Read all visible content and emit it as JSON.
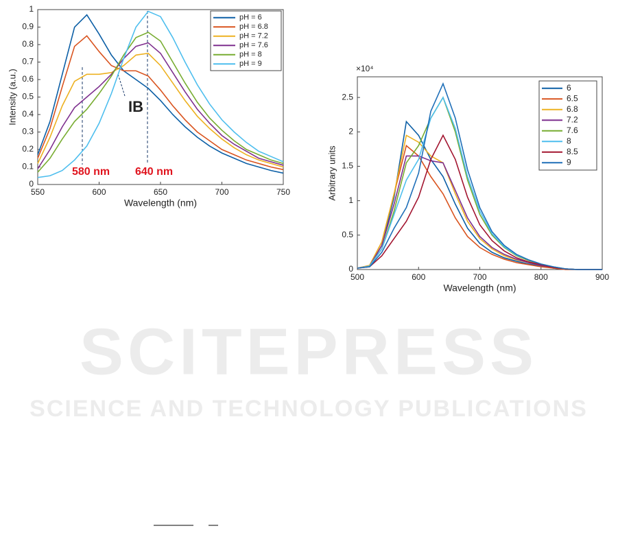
{
  "chart_data": [
    {
      "type": "line",
      "xlabel": "Wavelength (nm)",
      "ylabel": "Intensity (a.u.)",
      "x": [
        550,
        560,
        570,
        580,
        590,
        600,
        610,
        620,
        630,
        640,
        650,
        660,
        670,
        680,
        690,
        700,
        710,
        720,
        730,
        740,
        750
      ],
      "xlim": [
        550,
        750
      ],
      "xticks": [
        550,
        600,
        650,
        700,
        750
      ],
      "ylim": [
        0,
        1
      ],
      "yticks": [
        0,
        0.1,
        0.2,
        0.3,
        0.4,
        0.5,
        0.6,
        0.7,
        0.8,
        0.9,
        1
      ],
      "legend": "upper right",
      "annotations": [
        "IB",
        "580 nm",
        "640 nm"
      ],
      "series": [
        {
          "name": "pH = 6",
          "color": "#0c5fa6",
          "values": [
            0.17,
            0.36,
            0.63,
            0.9,
            0.97,
            0.86,
            0.74,
            0.65,
            0.6,
            0.55,
            0.48,
            0.4,
            0.33,
            0.27,
            0.22,
            0.18,
            0.15,
            0.12,
            0.1,
            0.08,
            0.065
          ]
        },
        {
          "name": "pH = 6.8",
          "color": "#d9531e",
          "values": [
            0.15,
            0.32,
            0.56,
            0.79,
            0.85,
            0.76,
            0.68,
            0.65,
            0.65,
            0.62,
            0.54,
            0.45,
            0.37,
            0.3,
            0.25,
            0.2,
            0.17,
            0.14,
            0.12,
            0.1,
            0.085
          ]
        },
        {
          "name": "pH = 7.2",
          "color": "#edb120",
          "values": [
            0.12,
            0.27,
            0.45,
            0.59,
            0.63,
            0.63,
            0.64,
            0.68,
            0.74,
            0.75,
            0.68,
            0.58,
            0.48,
            0.39,
            0.32,
            0.26,
            0.21,
            0.17,
            0.14,
            0.12,
            0.1
          ]
        },
        {
          "name": "pH = 7.6",
          "color": "#7e2f8e",
          "values": [
            0.09,
            0.2,
            0.33,
            0.44,
            0.5,
            0.56,
            0.63,
            0.72,
            0.79,
            0.81,
            0.75,
            0.64,
            0.53,
            0.43,
            0.35,
            0.28,
            0.23,
            0.19,
            0.15,
            0.13,
            0.11
          ]
        },
        {
          "name": "pH = 8",
          "color": "#77ac30",
          "values": [
            0.07,
            0.15,
            0.26,
            0.36,
            0.43,
            0.52,
            0.62,
            0.74,
            0.84,
            0.87,
            0.82,
            0.7,
            0.58,
            0.47,
            0.38,
            0.31,
            0.25,
            0.2,
            0.17,
            0.14,
            0.12
          ]
        },
        {
          "name": "pH = 9",
          "color": "#4dbeee",
          "values": [
            0.04,
            0.05,
            0.08,
            0.14,
            0.22,
            0.35,
            0.52,
            0.72,
            0.9,
            0.99,
            0.96,
            0.84,
            0.7,
            0.57,
            0.46,
            0.37,
            0.3,
            0.24,
            0.19,
            0.16,
            0.13
          ]
        }
      ]
    },
    {
      "type": "line",
      "xlabel": "Wavelength (nm)",
      "ylabel": "Arbitrary units",
      "y_scale_label": "×10⁴",
      "x": [
        500,
        520,
        540,
        560,
        580,
        600,
        620,
        640,
        660,
        680,
        700,
        720,
        740,
        760,
        780,
        800,
        820,
        840,
        860,
        880,
        900
      ],
      "xlim": [
        500,
        900
      ],
      "xticks": [
        500,
        600,
        700,
        800,
        900
      ],
      "ylim": [
        0,
        2.8
      ],
      "yticks": [
        0,
        0.5,
        1,
        1.5,
        2,
        2.5
      ],
      "legend": "upper right",
      "series": [
        {
          "name": "6",
          "color": "#0c5fa6",
          "values": [
            0.02,
            0.05,
            0.35,
            1.05,
            2.15,
            1.95,
            1.6,
            1.35,
            0.95,
            0.6,
            0.38,
            0.25,
            0.17,
            0.12,
            0.08,
            0.05,
            0.02,
            0,
            0,
            0,
            0
          ]
        },
        {
          "name": "6.5",
          "color": "#d9531e",
          "values": [
            0.02,
            0.06,
            0.4,
            1.1,
            1.8,
            1.65,
            1.35,
            1.1,
            0.75,
            0.48,
            0.32,
            0.22,
            0.15,
            0.1,
            0.07,
            0.04,
            0.02,
            0,
            0,
            0,
            0
          ]
        },
        {
          "name": "6.8",
          "color": "#edb120",
          "values": [
            0.02,
            0.06,
            0.4,
            1.1,
            1.95,
            1.85,
            1.65,
            1.55,
            1.1,
            0.7,
            0.45,
            0.3,
            0.2,
            0.14,
            0.1,
            0.06,
            0.03,
            0.01,
            0,
            0,
            0
          ]
        },
        {
          "name": "7.2",
          "color": "#7e2f8e",
          "values": [
            0.02,
            0.05,
            0.35,
            0.95,
            1.65,
            1.65,
            1.58,
            1.55,
            1.15,
            0.75,
            0.48,
            0.32,
            0.22,
            0.15,
            0.1,
            0.06,
            0.03,
            0.01,
            0,
            0,
            0
          ]
        },
        {
          "name": "7.6",
          "color": "#77ac30",
          "values": [
            0.02,
            0.05,
            0.3,
            0.85,
            1.55,
            1.8,
            2.2,
            2.5,
            2.0,
            1.3,
            0.8,
            0.5,
            0.32,
            0.2,
            0.13,
            0.08,
            0.04,
            0.01,
            0,
            0,
            0
          ]
        },
        {
          "name": "8",
          "color": "#4dbeee",
          "values": [
            0.02,
            0.05,
            0.3,
            0.8,
            1.3,
            1.6,
            2.2,
            2.5,
            2.05,
            1.35,
            0.85,
            0.52,
            0.33,
            0.21,
            0.14,
            0.08,
            0.04,
            0.01,
            0,
            0,
            0
          ]
        },
        {
          "name": "8.5",
          "color": "#a2142f",
          "values": [
            0.02,
            0.04,
            0.2,
            0.45,
            0.7,
            1.05,
            1.6,
            1.95,
            1.6,
            1.05,
            0.65,
            0.42,
            0.27,
            0.17,
            0.11,
            0.07,
            0.03,
            0.01,
            0,
            0,
            0
          ]
        },
        {
          "name": "9",
          "color": "#1f6fb8",
          "values": [
            0.02,
            0.04,
            0.25,
            0.6,
            0.9,
            1.4,
            2.3,
            2.7,
            2.2,
            1.45,
            0.9,
            0.55,
            0.35,
            0.22,
            0.14,
            0.08,
            0.04,
            0.01,
            0,
            0,
            0
          ]
        }
      ]
    }
  ],
  "watermark": {
    "title": "SCITEPRESS",
    "subtitle": "SCIENCE AND TECHNOLOGY PUBLICATIONS"
  }
}
